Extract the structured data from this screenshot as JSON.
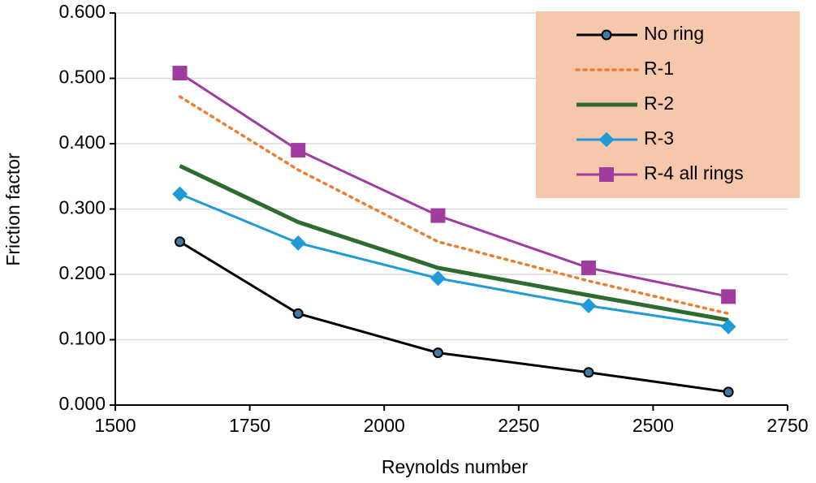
{
  "chart_data": {
    "type": "line",
    "x_label": "Reynolds number",
    "y_label": "Friction factor",
    "x": [
      1620,
      1840,
      2100,
      2380,
      2640
    ],
    "xlim": [
      1500,
      2750
    ],
    "xticks": [
      1500,
      1750,
      2000,
      2250,
      2500,
      2750
    ],
    "ylim": [
      0,
      0.6
    ],
    "yticks": [
      {
        "value": 0,
        "label": "0.000"
      },
      {
        "value": 0.1,
        "label": "0.100"
      },
      {
        "value": 0.2,
        "label": "0.200"
      },
      {
        "value": 0.3,
        "label": "0.300"
      },
      {
        "value": 0.4,
        "label": "0.400"
      },
      {
        "value": 0.5,
        "label": "0.500"
      },
      {
        "value": 0.6,
        "label": "0.600"
      }
    ],
    "grid": true,
    "legend": "top-right",
    "legend_color": "#f6c7ab",
    "series": [
      {
        "name": "No ring",
        "color": "#000000",
        "marker": "circle",
        "marker_color": "#3f7aa6",
        "dash": "solid",
        "line_width": 3,
        "values": [
          0.25,
          0.14,
          0.08,
          0.05,
          0.02
        ]
      },
      {
        "name": "R-1",
        "color": "#ed7d31",
        "marker": "none",
        "dash": "dotted",
        "line_width": 3.5,
        "values": [
          0.472,
          0.36,
          0.25,
          0.19,
          0.14
        ]
      },
      {
        "name": "R-2",
        "color": "#2e6b30",
        "marker": "none",
        "dash": "solid",
        "line_width": 5,
        "values": [
          0.366,
          0.28,
          0.21,
          0.168,
          0.13
        ]
      },
      {
        "name": "R-3",
        "color": "#1f9bd7",
        "marker": "diamond",
        "marker_color": "#1f9bd7",
        "dash": "solid",
        "line_width": 3,
        "values": [
          0.323,
          0.248,
          0.194,
          0.152,
          0.12
        ]
      },
      {
        "name": "R-4 all rings",
        "color": "#a03ca0",
        "marker": "square",
        "marker_color": "#a03ca0",
        "dash": "solid",
        "line_width": 3,
        "values": [
          0.508,
          0.39,
          0.29,
          0.21,
          0.166
        ]
      }
    ]
  }
}
